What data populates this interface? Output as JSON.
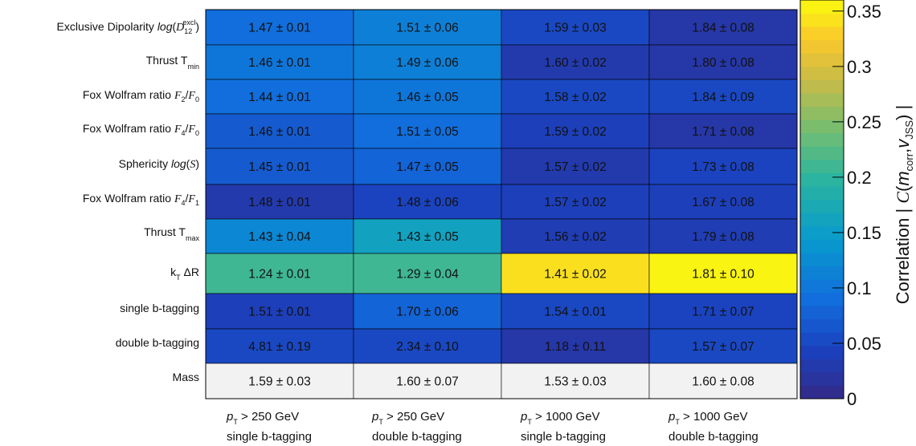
{
  "chart_data": {
    "type": "heatmap",
    "rows": [
      "Exclusive Dipolarity log(D12 excl)",
      "Thrust T min",
      "Fox Wolfram ratio F2/F0",
      "Fox Wolfram ratio F4/F0",
      "Sphericity log(S)",
      "Fox Wolfram ratio F4/F1",
      "Thrust T max",
      "kT ΔR",
      "single b-tagging",
      "double b-tagging",
      "Mass"
    ],
    "columns": [
      "pT > 250 GeV single b-tagging",
      "pT > 250 GeV double b-tagging",
      "pT > 1000 GeV single b-tagging",
      "pT > 1000 GeV double b-tagging"
    ],
    "cell_text": [
      [
        "1.47 ± 0.01",
        "1.51 ± 0.06",
        "1.59 ± 0.03",
        "1.84 ± 0.08"
      ],
      [
        "1.46 ± 0.01",
        "1.49 ± 0.06",
        "1.60 ± 0.02",
        "1.80 ± 0.08"
      ],
      [
        "1.44 ± 0.01",
        "1.46 ± 0.05",
        "1.58 ± 0.02",
        "1.84 ± 0.09"
      ],
      [
        "1.46 ± 0.01",
        "1.51 ± 0.05",
        "1.59 ± 0.02",
        "1.71 ± 0.08"
      ],
      [
        "1.45 ± 0.01",
        "1.47 ± 0.05",
        "1.57 ± 0.02",
        "1.73 ± 0.08"
      ],
      [
        "1.48 ± 0.01",
        "1.48 ± 0.06",
        "1.57 ± 0.02",
        "1.67 ± 0.08"
      ],
      [
        "1.43 ± 0.04",
        "1.43 ± 0.05",
        "1.56 ± 0.02",
        "1.79 ± 0.08"
      ],
      [
        "1.24 ± 0.01",
        "1.29 ± 0.04",
        "1.41 ± 0.02",
        "1.81 ± 0.10"
      ],
      [
        "1.51 ± 0.01",
        "1.70 ± 0.06",
        "1.54 ± 0.01",
        "1.71 ± 0.07"
      ],
      [
        "4.81 ± 0.19",
        "2.34 ± 0.10",
        "1.18 ± 0.11",
        "1.57 ± 0.07"
      ],
      [
        "1.59 ± 0.03",
        "1.60 ± 0.07",
        "1.53 ± 0.03",
        "1.60 ± 0.08"
      ]
    ],
    "correlation": [
      [
        0.09,
        0.11,
        0.05,
        0.025
      ],
      [
        0.1,
        0.11,
        0.03,
        0.025
      ],
      [
        0.09,
        0.1,
        0.05,
        0.05
      ],
      [
        0.07,
        0.09,
        0.04,
        0.025
      ],
      [
        0.07,
        0.08,
        0.03,
        0.045
      ],
      [
        0.03,
        0.045,
        0.04,
        0.04
      ],
      [
        0.12,
        0.16,
        0.035,
        0.035
      ],
      [
        0.21,
        0.21,
        0.34,
        0.355
      ],
      [
        0.04,
        0.08,
        0.05,
        0.045
      ],
      [
        0.05,
        0.05,
        0.025,
        0.05
      ],
      [
        null,
        null,
        null,
        null
      ]
    ],
    "colorbar": {
      "title": "Correlation | C(m_corr, v_JSS) |",
      "range": [
        0,
        0.36
      ],
      "ticks": [
        0,
        0.05,
        0.1,
        0.15,
        0.2,
        0.25,
        0.3,
        0.35
      ],
      "tick_labels": [
        "0",
        "0.05",
        "0.1",
        "0.15",
        "0.2",
        "0.25",
        "0.3",
        "0.35"
      ],
      "colormap": "parula"
    },
    "null_cell_color": "#f2f2f2"
  }
}
